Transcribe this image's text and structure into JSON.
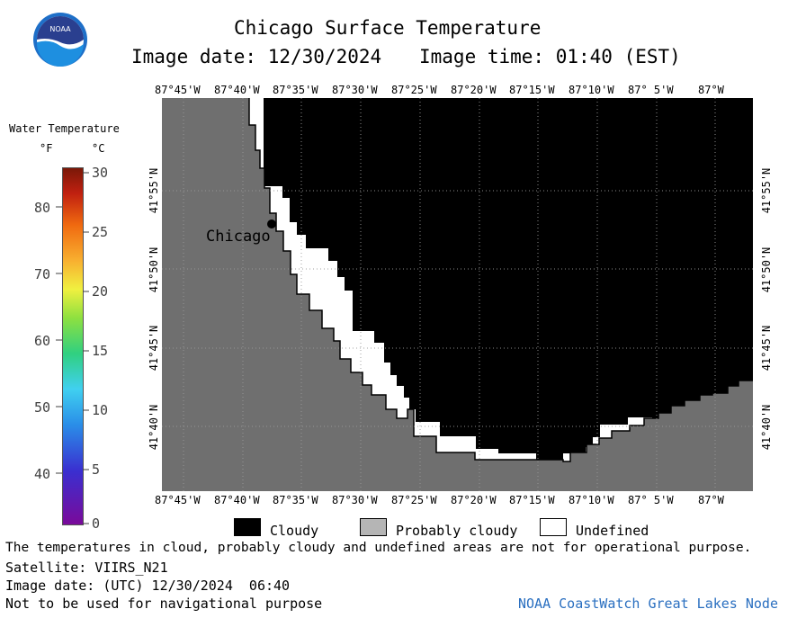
{
  "header": {
    "logo_text": "NOAA",
    "title": "Chicago Surface Temperature",
    "image_date": "Image date: 12/30/2024",
    "image_time": "Image time: 01:40 (EST)"
  },
  "colorbar": {
    "title": "Water Temperature",
    "unit_f": "°F",
    "unit_c": "°C",
    "f_ticks": [
      "80",
      "70",
      "60",
      "50",
      "40"
    ],
    "c_ticks": [
      "30",
      "25",
      "20",
      "15",
      "10",
      "5",
      "0"
    ]
  },
  "map": {
    "lon_labels": [
      "87°45'W",
      "87°40'W",
      "87°35'W",
      "87°30'W",
      "87°25'W",
      "87°20'W",
      "87°15'W",
      "87°10'W",
      "87° 5'W",
      "87°W"
    ],
    "lat_labels": [
      "41°55'N",
      "41°50'N",
      "41°45'N",
      "41°40'N"
    ],
    "city_label": "Chicago",
    "colors": {
      "land": "#6f6f6f",
      "cloudy": "#000000",
      "undefined": "#ffffff",
      "coast": "#000000"
    }
  },
  "legend": {
    "cloudy": "Cloudy",
    "probably_cloudy": "Probably cloudy",
    "undefined": "Undefined",
    "colors": {
      "cloudy": "#000000",
      "probably_cloudy": "#b5b5b5",
      "undefined": "#ffffff"
    }
  },
  "footer": {
    "disclaimer": "The temperatures in cloud, probably cloudy and undefined areas are not for operational purpose.",
    "satellite": "Satellite: VIIRS_N21",
    "utc_date": "Image date: (UTC) 12/30/2024  06:40",
    "nav_warning": "Not to be used for navigational purpose",
    "credit": "NOAA CoastWatch Great Lakes Node"
  }
}
